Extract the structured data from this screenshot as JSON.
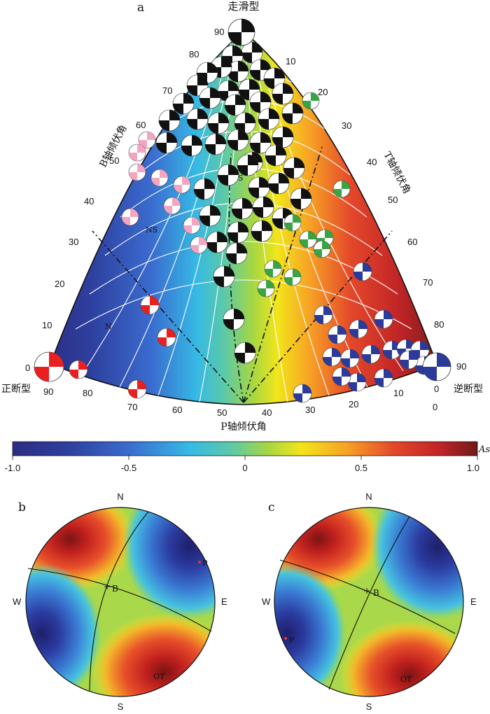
{
  "panel_a": {
    "label": "a",
    "apex_title": "走滑型",
    "left_title": "正断型",
    "right_title": "逆断型",
    "left_axis_label": "B轴倾伏角",
    "right_axis_label": "T轴倾伏角",
    "bottom_axis_label": "P轴倾伏角",
    "left_ticks": [
      "0",
      "10",
      "20",
      "30",
      "40",
      "50",
      "60",
      "70",
      "80",
      "90"
    ],
    "right_ticks": [
      "0",
      "10",
      "20",
      "30",
      "40",
      "50",
      "60",
      "70",
      "80",
      "90"
    ],
    "bottom_ticks": [
      "90",
      "80",
      "70",
      "60",
      "50",
      "40",
      "30",
      "20",
      "10",
      "0"
    ],
    "region_labels": [
      "S",
      "NS",
      "N"
    ],
    "colors": {
      "normal": "#e8201f",
      "normal_ss": "#f4a6c0",
      "strike_slip": "#111111",
      "thrust_ss": "#3aa346",
      "thrust": "#2c3a9a"
    }
  },
  "colorbar": {
    "ticks": [
      "-1.0",
      "-0.5",
      "0",
      "0.5",
      "1.0"
    ],
    "label": "As",
    "stops": [
      "#2b2d83",
      "#3a6ccf",
      "#36b9e5",
      "#5cc9a7",
      "#a7d742",
      "#f2e51a",
      "#f7a125",
      "#e4482a",
      "#c02426",
      "#6e1a1a"
    ]
  },
  "panel_b": {
    "label": "b",
    "dirs": {
      "n": "N",
      "s": "S",
      "e": "E",
      "w": "W"
    },
    "b_label": "B",
    "p_label": "P",
    "ot_label": "OT"
  },
  "panel_c": {
    "label": "c",
    "dirs": {
      "n": "N",
      "s": "S",
      "e": "E",
      "w": "W"
    },
    "b_label": "B",
    "p_label": "P",
    "ot_label": "OT"
  }
}
